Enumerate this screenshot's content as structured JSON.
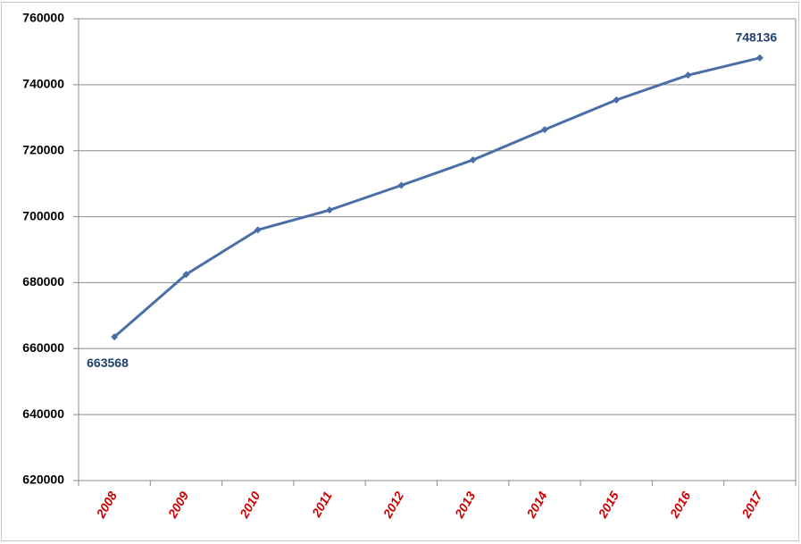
{
  "chart_data": {
    "type": "line",
    "categories": [
      "2008",
      "2009",
      "2010",
      "2011",
      "2012",
      "2013",
      "2014",
      "2015",
      "2016",
      "2017"
    ],
    "series": [
      {
        "color": "#4a6fa8",
        "values": [
          663568,
          682500,
          696000,
          702000,
          709500,
          717200,
          726400,
          735400,
          742900,
          748136
        ]
      }
    ],
    "ylim": [
      620000,
      760000
    ],
    "yticks": [
      620000,
      640000,
      660000,
      680000,
      700000,
      720000,
      740000,
      760000
    ],
    "grid": true
  }
}
